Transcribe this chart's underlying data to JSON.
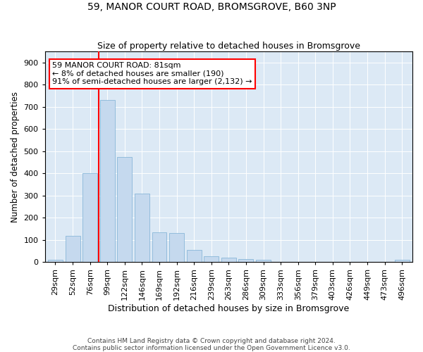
{
  "title": "59, MANOR COURT ROAD, BROMSGROVE, B60 3NP",
  "subtitle": "Size of property relative to detached houses in Bromsgrove",
  "xlabel": "Distribution of detached houses by size in Bromsgrove",
  "ylabel": "Number of detached properties",
  "categories": [
    "29sqm",
    "52sqm",
    "76sqm",
    "99sqm",
    "122sqm",
    "146sqm",
    "169sqm",
    "192sqm",
    "216sqm",
    "239sqm",
    "263sqm",
    "286sqm",
    "309sqm",
    "333sqm",
    "356sqm",
    "379sqm",
    "403sqm",
    "426sqm",
    "449sqm",
    "473sqm",
    "496sqm"
  ],
  "values": [
    10,
    120,
    400,
    730,
    475,
    310,
    135,
    130,
    55,
    25,
    20,
    15,
    10,
    0,
    0,
    0,
    0,
    0,
    0,
    0,
    10
  ],
  "bar_color": "#c5d9ee",
  "bar_edge_color": "#7aafd4",
  "vline_color": "red",
  "vline_position": 2.5,
  "ylim": [
    0,
    950
  ],
  "yticks": [
    0,
    100,
    200,
    300,
    400,
    500,
    600,
    700,
    800,
    900
  ],
  "annotation_line1": "59 MANOR COURT ROAD: 81sqm",
  "annotation_line2": "← 8% of detached houses are smaller (190)",
  "annotation_line3": "91% of semi-detached houses are larger (2,132) →",
  "annotation_box_color": "white",
  "annotation_box_edge": "red",
  "background_color": "#dce9f5",
  "footer_line1": "Contains HM Land Registry data © Crown copyright and database right 2024.",
  "footer_line2": "Contains public sector information licensed under the Open Government Licence v3.0.",
  "title_fontsize": 10,
  "subtitle_fontsize": 9,
  "xlabel_fontsize": 9,
  "ylabel_fontsize": 8.5,
  "tick_fontsize": 8,
  "annotation_fontsize": 8,
  "footer_fontsize": 6.5
}
